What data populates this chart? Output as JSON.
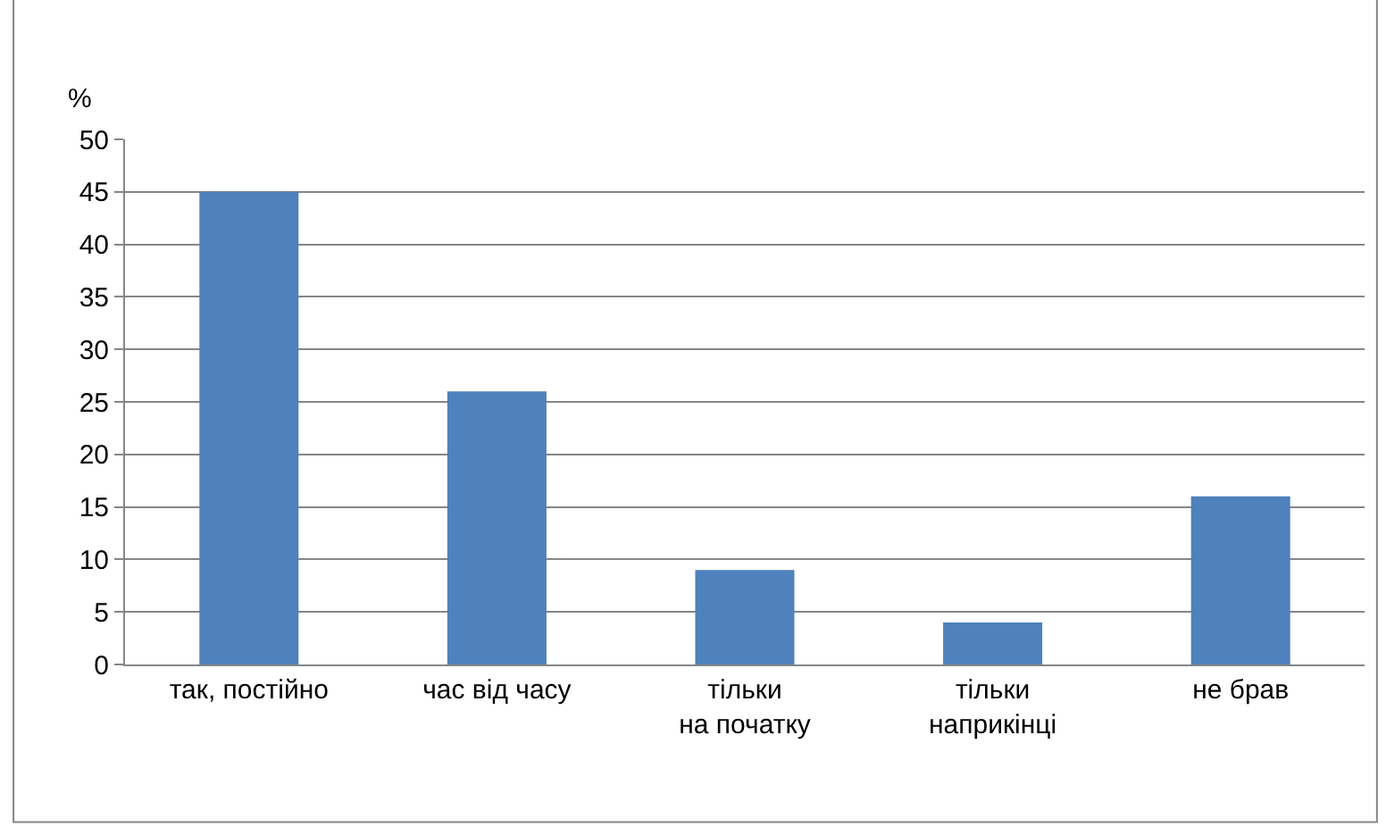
{
  "chart_data": {
    "type": "bar",
    "ylabel": "%",
    "categories": [
      "так, постійно",
      "час від часу",
      "тільки на початку",
      "тільки наприкінці",
      "не брав"
    ],
    "values": [
      45,
      26,
      9,
      4,
      16
    ],
    "color": "#4f81bd",
    "ylim": [
      0,
      50
    ],
    "yticks": [
      0,
      5,
      10,
      15,
      20,
      25,
      30,
      35,
      40,
      45,
      50
    ],
    "grid": "y"
  }
}
